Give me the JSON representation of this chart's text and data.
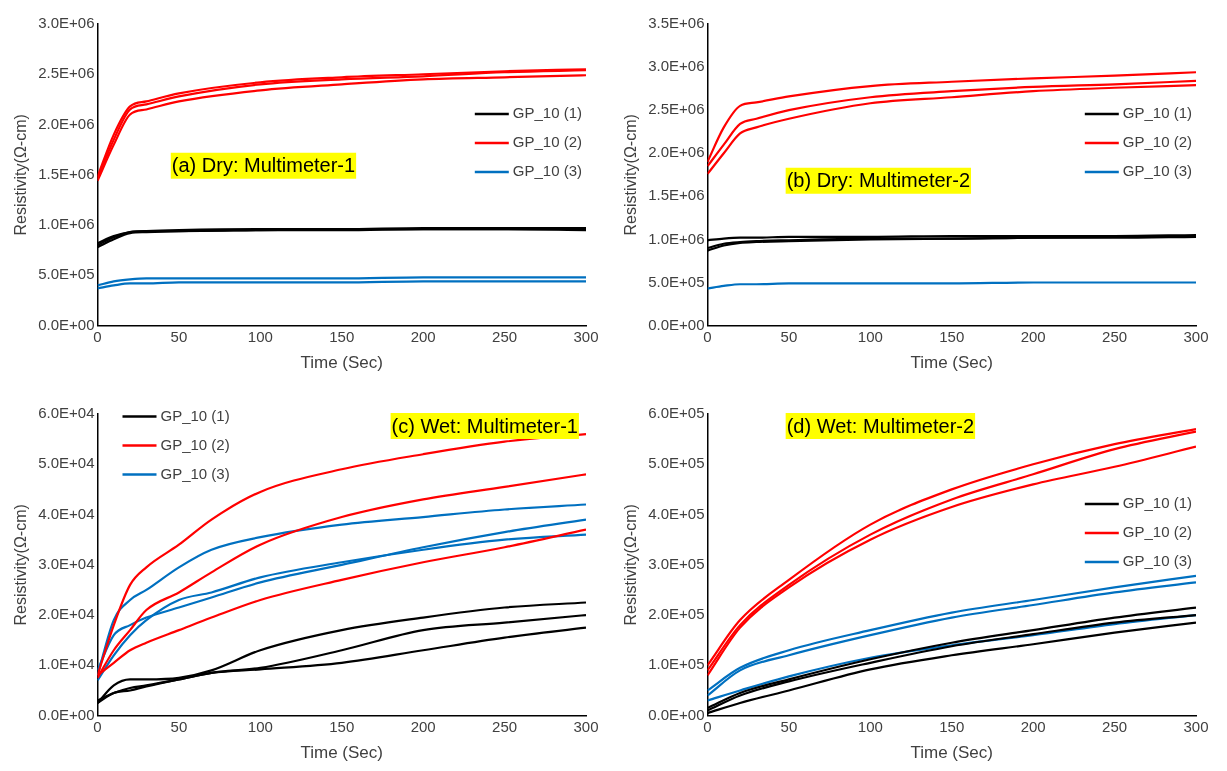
{
  "chart_data": [
    {
      "type": "line",
      "xlabel": "Time (Sec)",
      "ylabel": "Resistivity(Ω-cm)",
      "annotations": [
        "(a) Dry: Multimeter-1"
      ],
      "legend": "right",
      "xlim": [
        0,
        300
      ],
      "xticks": [
        0,
        50,
        100,
        150,
        200,
        250,
        300
      ],
      "ylim": [
        0,
        3000000
      ],
      "yticks": [
        {
          "value": 0,
          "label": "0.0E+00"
        },
        {
          "value": 500000,
          "label": "5.0E+05"
        },
        {
          "value": 1000000,
          "label": "1.0E+06"
        },
        {
          "value": 1500000,
          "label": "1.5E+06"
        },
        {
          "value": 2000000,
          "label": "2.0E+06"
        },
        {
          "value": 2500000,
          "label": "2.5E+06"
        },
        {
          "value": 3000000,
          "label": "3.0E+06"
        }
      ],
      "x": [
        0,
        10,
        20,
        30,
        50,
        100,
        150,
        200,
        250,
        300
      ],
      "series": [
        {
          "name": "GP_10 (1)",
          "color": "#000000",
          "values": [
            800000,
            880000,
            930000,
            940000,
            940000,
            950000,
            960000,
            960000,
            960000,
            960000
          ]
        },
        {
          "color": "#000000",
          "values": [
            820000,
            890000,
            930000,
            940000,
            950000,
            960000,
            960000,
            970000,
            970000,
            970000
          ]
        },
        {
          "color": "#000000",
          "values": [
            780000,
            860000,
            920000,
            930000,
            940000,
            950000,
            950000,
            960000,
            960000,
            950000
          ]
        },
        {
          "name": "GP_10 (2)",
          "color": "#ff0000",
          "values": [
            1480000,
            1900000,
            2180000,
            2230000,
            2310000,
            2420000,
            2470000,
            2500000,
            2530000,
            2550000
          ]
        },
        {
          "color": "#ff0000",
          "values": [
            1460000,
            1850000,
            2150000,
            2200000,
            2280000,
            2400000,
            2450000,
            2480000,
            2520000,
            2540000
          ]
        },
        {
          "color": "#ff0000",
          "values": [
            1440000,
            1800000,
            2100000,
            2150000,
            2230000,
            2340000,
            2400000,
            2450000,
            2470000,
            2490000
          ]
        },
        {
          "name": "GP_10 (3)",
          "color": "#0070c0",
          "values": [
            400000,
            440000,
            460000,
            470000,
            470000,
            470000,
            470000,
            480000,
            480000,
            480000
          ]
        },
        {
          "color": "#0070c0",
          "values": [
            370000,
            400000,
            420000,
            420000,
            430000,
            430000,
            430000,
            440000,
            440000,
            440000
          ]
        }
      ]
    },
    {
      "type": "line",
      "xlabel": "Time (Sec)",
      "ylabel": "Resistivity(Ω-cm)",
      "annotations": [
        "(b) Dry: Multimeter-2"
      ],
      "legend": "right",
      "xlim": [
        0,
        300
      ],
      "xticks": [
        0,
        50,
        100,
        150,
        200,
        250,
        300
      ],
      "ylim": [
        0,
        3500000
      ],
      "yticks": [
        {
          "value": 0,
          "label": "0.0E+00"
        },
        {
          "value": 500000,
          "label": "5.0E+05"
        },
        {
          "value": 1000000,
          "label": "1.0E+06"
        },
        {
          "value": 1500000,
          "label": "1.5E+06"
        },
        {
          "value": 2000000,
          "label": "2.0E+06"
        },
        {
          "value": 2500000,
          "label": "2.5E+06"
        },
        {
          "value": 3000000,
          "label": "3.0E+06"
        },
        {
          "value": 3500000,
          "label": "3.5E+06"
        }
      ],
      "x": [
        0,
        10,
        20,
        30,
        50,
        100,
        150,
        200,
        250,
        300
      ],
      "series": [
        {
          "name": "GP_10 (1)",
          "color": "#000000",
          "values": [
            990000,
            1010000,
            1020000,
            1020000,
            1030000,
            1030000,
            1040000,
            1040000,
            1040000,
            1050000
          ]
        },
        {
          "color": "#000000",
          "values": [
            870000,
            930000,
            960000,
            970000,
            980000,
            1000000,
            1010000,
            1020000,
            1030000,
            1040000
          ]
        },
        {
          "color": "#000000",
          "values": [
            900000,
            950000,
            970000,
            980000,
            990000,
            1010000,
            1010000,
            1020000,
            1020000,
            1030000
          ]
        },
        {
          "name": "GP_10 (2)",
          "color": "#ff0000",
          "values": [
            1900000,
            2300000,
            2550000,
            2590000,
            2660000,
            2780000,
            2830000,
            2870000,
            2900000,
            2940000
          ]
        },
        {
          "color": "#ff0000",
          "values": [
            1850000,
            2100000,
            2340000,
            2400000,
            2500000,
            2650000,
            2720000,
            2770000,
            2800000,
            2840000
          ]
        },
        {
          "color": "#ff0000",
          "values": [
            1760000,
            2000000,
            2230000,
            2300000,
            2400000,
            2580000,
            2650000,
            2720000,
            2760000,
            2790000
          ]
        },
        {
          "name": "GP_10 (3)",
          "color": "#0070c0",
          "values": [
            430000,
            460000,
            480000,
            480000,
            490000,
            490000,
            490000,
            500000,
            500000,
            500000
          ]
        }
      ]
    },
    {
      "type": "line",
      "xlabel": "Time (Sec)",
      "ylabel": "Resistivity(Ω-cm)",
      "annotations": [
        "(c) Wet: Multimeter-1"
      ],
      "legend": "top left",
      "xlim": [
        0,
        300
      ],
      "xticks": [
        0,
        50,
        100,
        150,
        200,
        250,
        300
      ],
      "ylim": [
        0,
        60000
      ],
      "yticks": [
        {
          "value": 0,
          "label": "0.0E+00"
        },
        {
          "value": 10000,
          "label": "1.0E+04"
        },
        {
          "value": 20000,
          "label": "2.0E+04"
        },
        {
          "value": 30000,
          "label": "3.0E+04"
        },
        {
          "value": 40000,
          "label": "4.0E+04"
        },
        {
          "value": 50000,
          "label": "5.0E+04"
        },
        {
          "value": 60000,
          "label": "6.0E+04"
        }
      ],
      "x": [
        0,
        10,
        20,
        30,
        50,
        70,
        100,
        150,
        200,
        250,
        300
      ],
      "series": [
        {
          "name": "GP_10 (1)",
          "color": "#000000",
          "values": [
            2500,
            6000,
            7200,
            7200,
            7500,
            9000,
            13000,
            17000,
            19500,
            21500,
            22500
          ]
        },
        {
          "color": "#000000",
          "values": [
            3000,
            4500,
            5500,
            6000,
            7200,
            8500,
            9500,
            13000,
            17000,
            18500,
            20000
          ]
        },
        {
          "color": "#000000",
          "values": [
            2500,
            4500,
            5000,
            5800,
            7200,
            8500,
            9200,
            10500,
            13000,
            15500,
            17500
          ]
        },
        {
          "name": "GP_10 (2)",
          "color": "#ff0000",
          "values": [
            8000,
            18000,
            26000,
            29500,
            34000,
            39000,
            44500,
            49000,
            52000,
            54500,
            56000
          ]
        },
        {
          "color": "#ff0000",
          "values": [
            7500,
            13000,
            17000,
            21000,
            24500,
            28500,
            34000,
            39500,
            43000,
            45500,
            48000
          ]
        },
        {
          "color": "#ff0000",
          "values": [
            8000,
            10500,
            13000,
            14500,
            17000,
            19500,
            23000,
            27000,
            30500,
            33500,
            37000
          ]
        },
        {
          "name": "GP_10 (3)",
          "color": "#0070c0",
          "values": [
            8000,
            19000,
            23000,
            25000,
            29500,
            33000,
            35500,
            38000,
            39500,
            41000,
            42000
          ]
        },
        {
          "color": "#0070c0",
          "values": [
            9000,
            16000,
            18000,
            19500,
            21500,
            23500,
            26500,
            30000,
            33500,
            36500,
            39000
          ]
        },
        {
          "color": "#0070c0",
          "values": [
            7000,
            12000,
            16000,
            19000,
            23000,
            24500,
            27500,
            30500,
            33000,
            35000,
            36000
          ]
        }
      ]
    },
    {
      "type": "line",
      "xlabel": "Time (Sec)",
      "ylabel": "Resistivity(Ω-cm)",
      "annotations": [
        "(d) Wet: Multimeter-2"
      ],
      "legend": "right",
      "xlim": [
        0,
        300
      ],
      "xticks": [
        0,
        50,
        100,
        150,
        200,
        250,
        300
      ],
      "ylim": [
        0,
        600000
      ],
      "yticks": [
        {
          "value": 0,
          "label": "0.0E+00"
        },
        {
          "value": 100000,
          "label": "1.0E+05"
        },
        {
          "value": 200000,
          "label": "2.0E+05"
        },
        {
          "value": 300000,
          "label": "3.0E+05"
        },
        {
          "value": 400000,
          "label": "4.0E+05"
        },
        {
          "value": 500000,
          "label": "5.0E+05"
        },
        {
          "value": 600000,
          "label": "6.0E+05"
        }
      ],
      "x": [
        0,
        20,
        50,
        100,
        150,
        200,
        250,
        300
      ],
      "series": [
        {
          "name": "GP_10 (1)",
          "color": "#000000",
          "values": [
            15000,
            45000,
            72000,
            112000,
            145000,
            170000,
            195000,
            215000
          ]
        },
        {
          "color": "#000000",
          "values": [
            10000,
            40000,
            68000,
            105000,
            138000,
            162000,
            185000,
            200000
          ]
        },
        {
          "color": "#000000",
          "values": [
            5000,
            25000,
            50000,
            92000,
            120000,
            142000,
            165000,
            185000
          ]
        },
        {
          "name": "GP_10 (2)",
          "color": "#ff0000",
          "values": [
            100000,
            190000,
            270000,
            380000,
            450000,
            500000,
            540000,
            570000
          ]
        },
        {
          "color": "#ff0000",
          "values": [
            90000,
            180000,
            260000,
            360000,
            430000,
            480000,
            530000,
            565000
          ]
        },
        {
          "color": "#ff0000",
          "values": [
            80000,
            175000,
            255000,
            350000,
            415000,
            460000,
            495000,
            535000
          ]
        },
        {
          "name": "GP_10 (3)",
          "color": "#0070c0",
          "values": [
            50000,
            95000,
            130000,
            170000,
            205000,
            230000,
            255000,
            278000
          ]
        },
        {
          "color": "#0070c0",
          "values": [
            40000,
            90000,
            120000,
            160000,
            195000,
            220000,
            245000,
            265000
          ]
        },
        {
          "color": "#0070c0",
          "values": [
            30000,
            50000,
            78000,
            115000,
            140000,
            160000,
            182000,
            200000
          ]
        }
      ]
    }
  ]
}
